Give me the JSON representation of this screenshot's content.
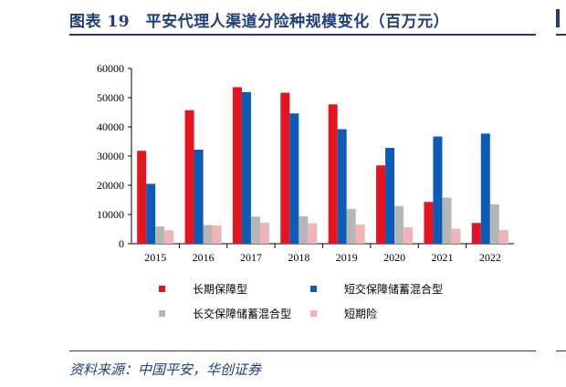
{
  "header": {
    "title": "图表 19　平安代理人渠道分险种规模变化（百万元）"
  },
  "footer": {
    "source": "资料来源：中国平安，华创证券"
  },
  "chart_data": {
    "type": "bar",
    "categories": [
      "2015",
      "2016",
      "2017",
      "2018",
      "2019",
      "2020",
      "2021",
      "2022"
    ],
    "series": [
      {
        "name": "长期保障型",
        "color": "#e5141f",
        "values": [
          31800,
          45700,
          53600,
          51700,
          47700,
          26800,
          14300,
          7100
        ]
      },
      {
        "name": "短交保障储蓄混合型",
        "color": "#0b5cb6",
        "values": [
          20500,
          32200,
          51900,
          44600,
          39200,
          32800,
          36700,
          37700
        ]
      },
      {
        "name": "长交保障储蓄混合型",
        "color": "#b6b6b6",
        "values": [
          5900,
          6400,
          9300,
          9400,
          11900,
          12900,
          15800,
          13500
        ]
      },
      {
        "name": "短期险",
        "color": "#f0b4b6",
        "values": [
          4600,
          6200,
          7200,
          7000,
          6500,
          5600,
          5100,
          4700
        ]
      }
    ],
    "y_ticks": [
      "0",
      "10000",
      "20000",
      "30000",
      "40000",
      "50000",
      "60000"
    ],
    "ylim": [
      0,
      60000
    ],
    "grid": false,
    "legend": "bottom"
  }
}
